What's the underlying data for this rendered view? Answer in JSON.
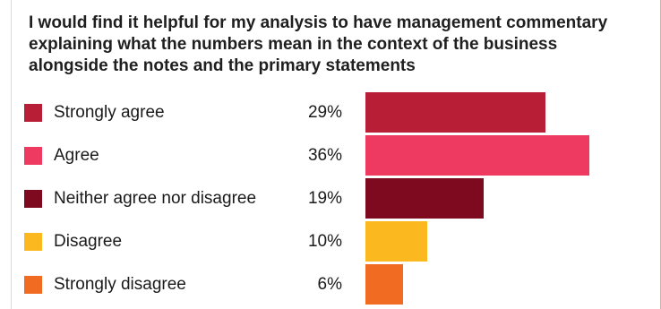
{
  "chart_data": {
    "type": "bar",
    "orientation": "horizontal",
    "title": "I would find it helpful for my analysis to have management commentary explaining what the numbers mean in the context of the business alongside the notes and the primary statements",
    "categories": [
      "Strongly agree",
      "Agree",
      "Neither agree nor disagree",
      "Disagree",
      "Strongly disagree"
    ],
    "values": [
      29,
      36,
      19,
      10,
      6
    ],
    "value_labels": [
      "29%",
      "36%",
      "19%",
      "10%",
      "6%"
    ],
    "colors": [
      "#b81f36",
      "#ee3a61",
      "#7d0a1e",
      "#fbb91f",
      "#f26b22"
    ],
    "xlim": [
      0,
      36
    ],
    "grid": false,
    "legend": "inline-left"
  }
}
